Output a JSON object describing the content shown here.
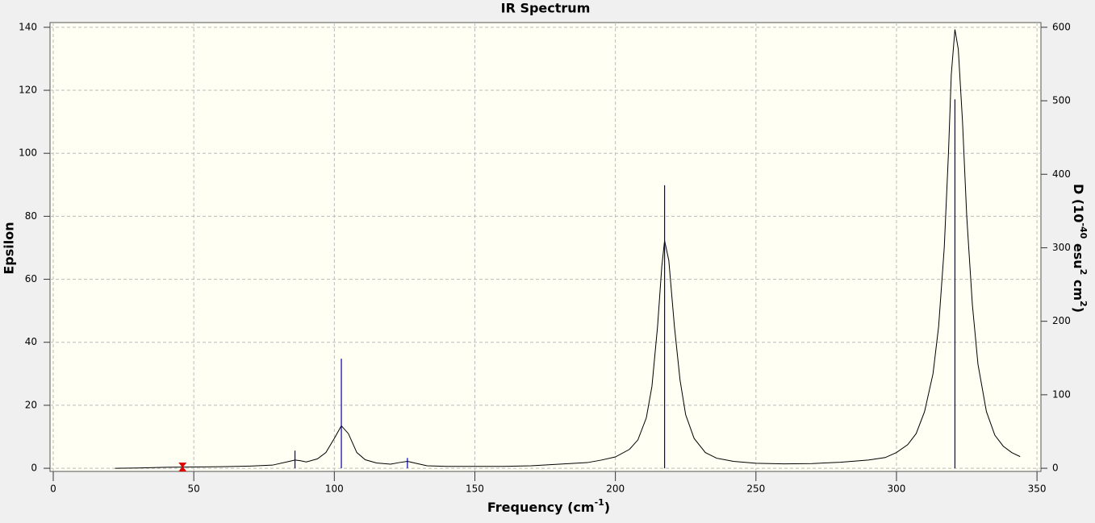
{
  "chart_data": {
    "type": "spectrum",
    "title": "IR Spectrum",
    "xlabel": [
      "Frequency (cm",
      "-1",
      ")"
    ],
    "ylabel": "Epsilon",
    "y2label": [
      "D (10",
      "-40",
      " esu",
      "2",
      " cm",
      "2",
      ")"
    ],
    "xlim": [
      -1.15,
      351.4
    ],
    "ylim": [
      -1,
      141.5
    ],
    "y2lim": [
      -4.3,
      606.4
    ],
    "xticks": [
      0,
      50,
      100,
      150,
      200,
      250,
      300,
      350
    ],
    "yticks": [
      0,
      20,
      40,
      60,
      80,
      100,
      120,
      140
    ],
    "y2ticks": [
      0,
      100,
      200,
      300,
      400,
      500,
      600
    ],
    "grid": true,
    "spectrum": {
      "color": "#000000",
      "x": [
        22,
        30,
        40,
        50,
        60,
        70,
        78,
        84,
        86,
        88,
        90,
        94,
        97,
        100,
        102.5,
        105,
        108,
        111,
        115,
        120,
        123,
        126,
        129,
        133,
        140,
        150,
        160,
        170,
        180,
        190,
        195,
        200,
        205,
        208,
        211,
        213,
        215,
        216.5,
        217.5,
        219,
        221,
        223,
        225,
        228,
        232,
        236,
        242,
        250,
        260,
        270,
        280,
        290,
        296,
        300,
        304,
        307,
        310,
        313,
        315,
        317,
        318.5,
        319.5,
        320.8,
        322,
        323.5,
        325,
        327,
        329,
        332,
        335,
        338,
        341,
        344
      ],
      "values": [
        0,
        0.1,
        0.3,
        0.4,
        0.5,
        0.7,
        1.0,
        2.2,
        2.6,
        2.4,
        2.0,
        3,
        5,
        9.5,
        13.5,
        11,
        5,
        2.7,
        1.7,
        1.3,
        1.8,
        2.2,
        1.6,
        0.8,
        0.6,
        0.6,
        0.6,
        0.8,
        1.3,
        1.8,
        2.6,
        3.6,
        6,
        9,
        16,
        26,
        45,
        64,
        72.3,
        66,
        45,
        28,
        17,
        9.5,
        5,
        3.2,
        2.2,
        1.6,
        1.4,
        1.5,
        1.9,
        2.6,
        3.4,
        5,
        7.5,
        11,
        18,
        30,
        45,
        70,
        100,
        125,
        139.3,
        133,
        110,
        80,
        52,
        33,
        18,
        10.5,
        7,
        5,
        3.7
      ]
    },
    "sticks": {
      "color": "#0000aa",
      "axis": "y2",
      "x": [
        86,
        102.5,
        126,
        217.5,
        320.8
      ],
      "values": [
        24,
        149,
        14,
        385,
        502
      ]
    },
    "marker": {
      "x": 46,
      "value": 0.4,
      "color": "#e00000"
    }
  }
}
